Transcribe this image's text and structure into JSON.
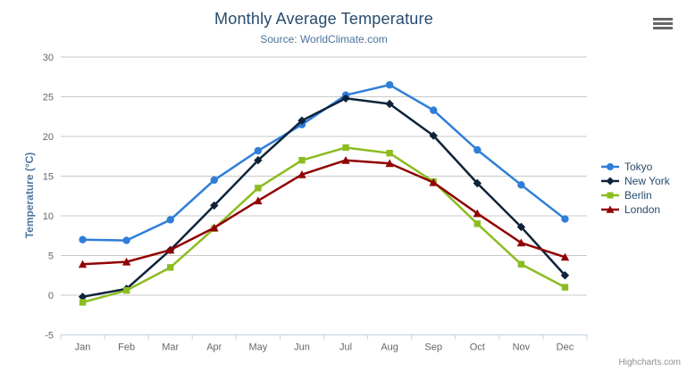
{
  "chart_data": {
    "type": "line",
    "title": "Monthly Average Temperature",
    "subtitle": "Source: WorldClimate.com",
    "categories": [
      "Jan",
      "Feb",
      "Mar",
      "Apr",
      "May",
      "Jun",
      "Jul",
      "Aug",
      "Sep",
      "Oct",
      "Nov",
      "Dec"
    ],
    "series": [
      {
        "name": "Tokyo",
        "color": "#2f7ed8",
        "marker": "circle",
        "values": [
          7.0,
          6.9,
          9.5,
          14.5,
          18.2,
          21.5,
          25.2,
          26.5,
          23.3,
          18.3,
          13.9,
          9.6
        ]
      },
      {
        "name": "New York",
        "color": "#0d233a",
        "marker": "diamond",
        "values": [
          -0.2,
          0.8,
          5.7,
          11.3,
          17.0,
          22.0,
          24.8,
          24.1,
          20.1,
          14.1,
          8.6,
          2.5
        ]
      },
      {
        "name": "Berlin",
        "color": "#8bbc21",
        "marker": "square",
        "values": [
          -0.9,
          0.6,
          3.5,
          8.4,
          13.5,
          17.0,
          18.6,
          17.9,
          14.3,
          9.0,
          3.9,
          1.0
        ]
      },
      {
        "name": "London",
        "color": "#910000",
        "marker": "triangle",
        "values": [
          3.9,
          4.2,
          5.7,
          8.5,
          11.9,
          15.2,
          17.0,
          16.6,
          14.2,
          10.3,
          6.6,
          4.8
        ]
      }
    ],
    "xlabel": "",
    "ylabel": "Temperature (°C)",
    "ylim": [
      -5,
      30
    ],
    "ytick_interval": 5,
    "grid": true,
    "legend_position": "right"
  },
  "ui": {
    "export_menu_icon": "hamburger-menu-icon",
    "credits": "Highcharts.com"
  },
  "colors": {
    "title": "#274b6d",
    "subtitle": "#4d759e",
    "axis_title": "#4d759e",
    "tick_label": "#666666",
    "grid_line": "#c9c9c9",
    "axis_line": "#c0d0e0",
    "legend_text": "#274b6d",
    "credits": "#909090",
    "background": "#ffffff"
  }
}
